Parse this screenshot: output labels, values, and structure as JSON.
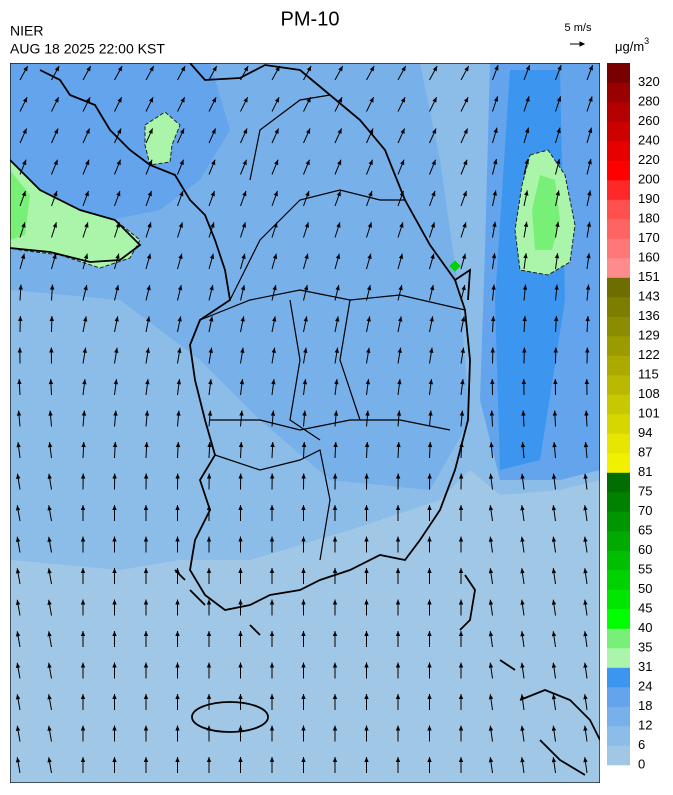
{
  "header": {
    "title": "PM-10",
    "source": "NIER",
    "datetime": "AUG 18 2025 22:00 KST",
    "wind_scale": "5 m/s"
  },
  "colorbar": {
    "unit": "μg/m",
    "unit_superscript": "3",
    "ticks": [
      0,
      6,
      12,
      18,
      24,
      31,
      35,
      40,
      45,
      50,
      55,
      60,
      65,
      70,
      75,
      81,
      87,
      94,
      101,
      108,
      115,
      122,
      129,
      136,
      143,
      151,
      160,
      170,
      180,
      190,
      200,
      220,
      240,
      260,
      280,
      320
    ],
    "colors": [
      "#a0c8e6",
      "#8cbde8",
      "#78b0ea",
      "#64a4ec",
      "#3c96f0",
      "#aaf5aa",
      "#78f078",
      "#00ff00",
      "#00e600",
      "#00d200",
      "#00be00",
      "#00aa00",
      "#009600",
      "#008200",
      "#006e00",
      "#f0f000",
      "#e6e600",
      "#d7d700",
      "#c8c800",
      "#b9b900",
      "#aaaa00",
      "#9b9b00",
      "#8c8c00",
      "#7d7d00",
      "#6e6e00",
      "#ff8c8c",
      "#ff7878",
      "#ff6464",
      "#ff5050",
      "#ff2828",
      "#ff0000",
      "#e60000",
      "#cd0000",
      "#b40000",
      "#9b0000",
      "#780000"
    ]
  }
}
